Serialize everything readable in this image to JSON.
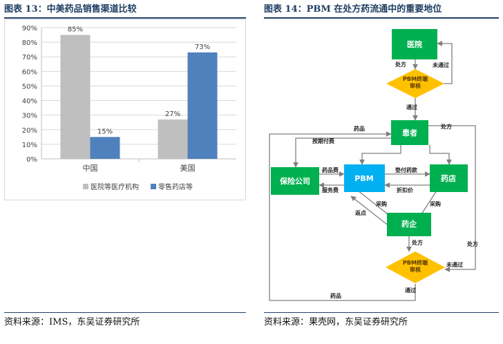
{
  "left_figure": {
    "title": "图表 13：中美药品销售渠道比较",
    "source": "资料来源：IMS，东吴证券研究所"
  },
  "right_figure": {
    "title": "图表 14：PBM 在处方药流通中的重要地位",
    "source": "资料来源：果壳网，东吴证券研究所"
  },
  "chart_data": {
    "type": "bar",
    "title": "",
    "xlabel": "",
    "ylabel": "",
    "categories": [
      "中国",
      "美国"
    ],
    "series": [
      {
        "name": "医院等医疗机构",
        "values": [
          85,
          27
        ],
        "labels": [
          "85%",
          "27%"
        ]
      },
      {
        "name": "零售药店等",
        "values": [
          15,
          73
        ],
        "labels": [
          "15%",
          "73%"
        ]
      }
    ],
    "ylim": [
      0,
      90
    ],
    "yticks": [
      "0%",
      "10%",
      "20%",
      "30%",
      "40%",
      "50%",
      "60%",
      "70%",
      "80%",
      "90%"
    ],
    "grid": true,
    "legend": "bottom",
    "colors": {
      "series_0": "#bfbfbf",
      "series_1": "#4f81bd"
    }
  },
  "diagram": {
    "nodes": {
      "hospital": "医院",
      "pbm_review_top": "PBM终端审核",
      "patient": "患者",
      "insurer": "保险公司",
      "pbm": "PBM",
      "pharmacy": "药店",
      "pharma": "药企",
      "pbm_review_bottom": "PBM终端审核"
    },
    "edges": {
      "prescription_1": "处方",
      "not_passed_top": "未通过",
      "passed_top": "通过",
      "drugs_left": "药品",
      "prescription_right": "处方",
      "regular_payment": "按期付费",
      "drug_fee": "药品费",
      "service_fee": "服务费",
      "advance_payment": "垫付药款",
      "discount_price": "折扣价",
      "purchase_left": "采购",
      "rebate": "返点",
      "purchase_right": "采购",
      "prescription_2": "处方",
      "prescription_far_right": "处方",
      "not_passed_bottom": "未通过",
      "passed_bottom": "通过",
      "drugs_bottom": "药品"
    },
    "colors": {
      "green": "#00b050",
      "blue": "#00b0f0",
      "yellow": "#ffc000",
      "line": "#7f7f7f"
    }
  }
}
